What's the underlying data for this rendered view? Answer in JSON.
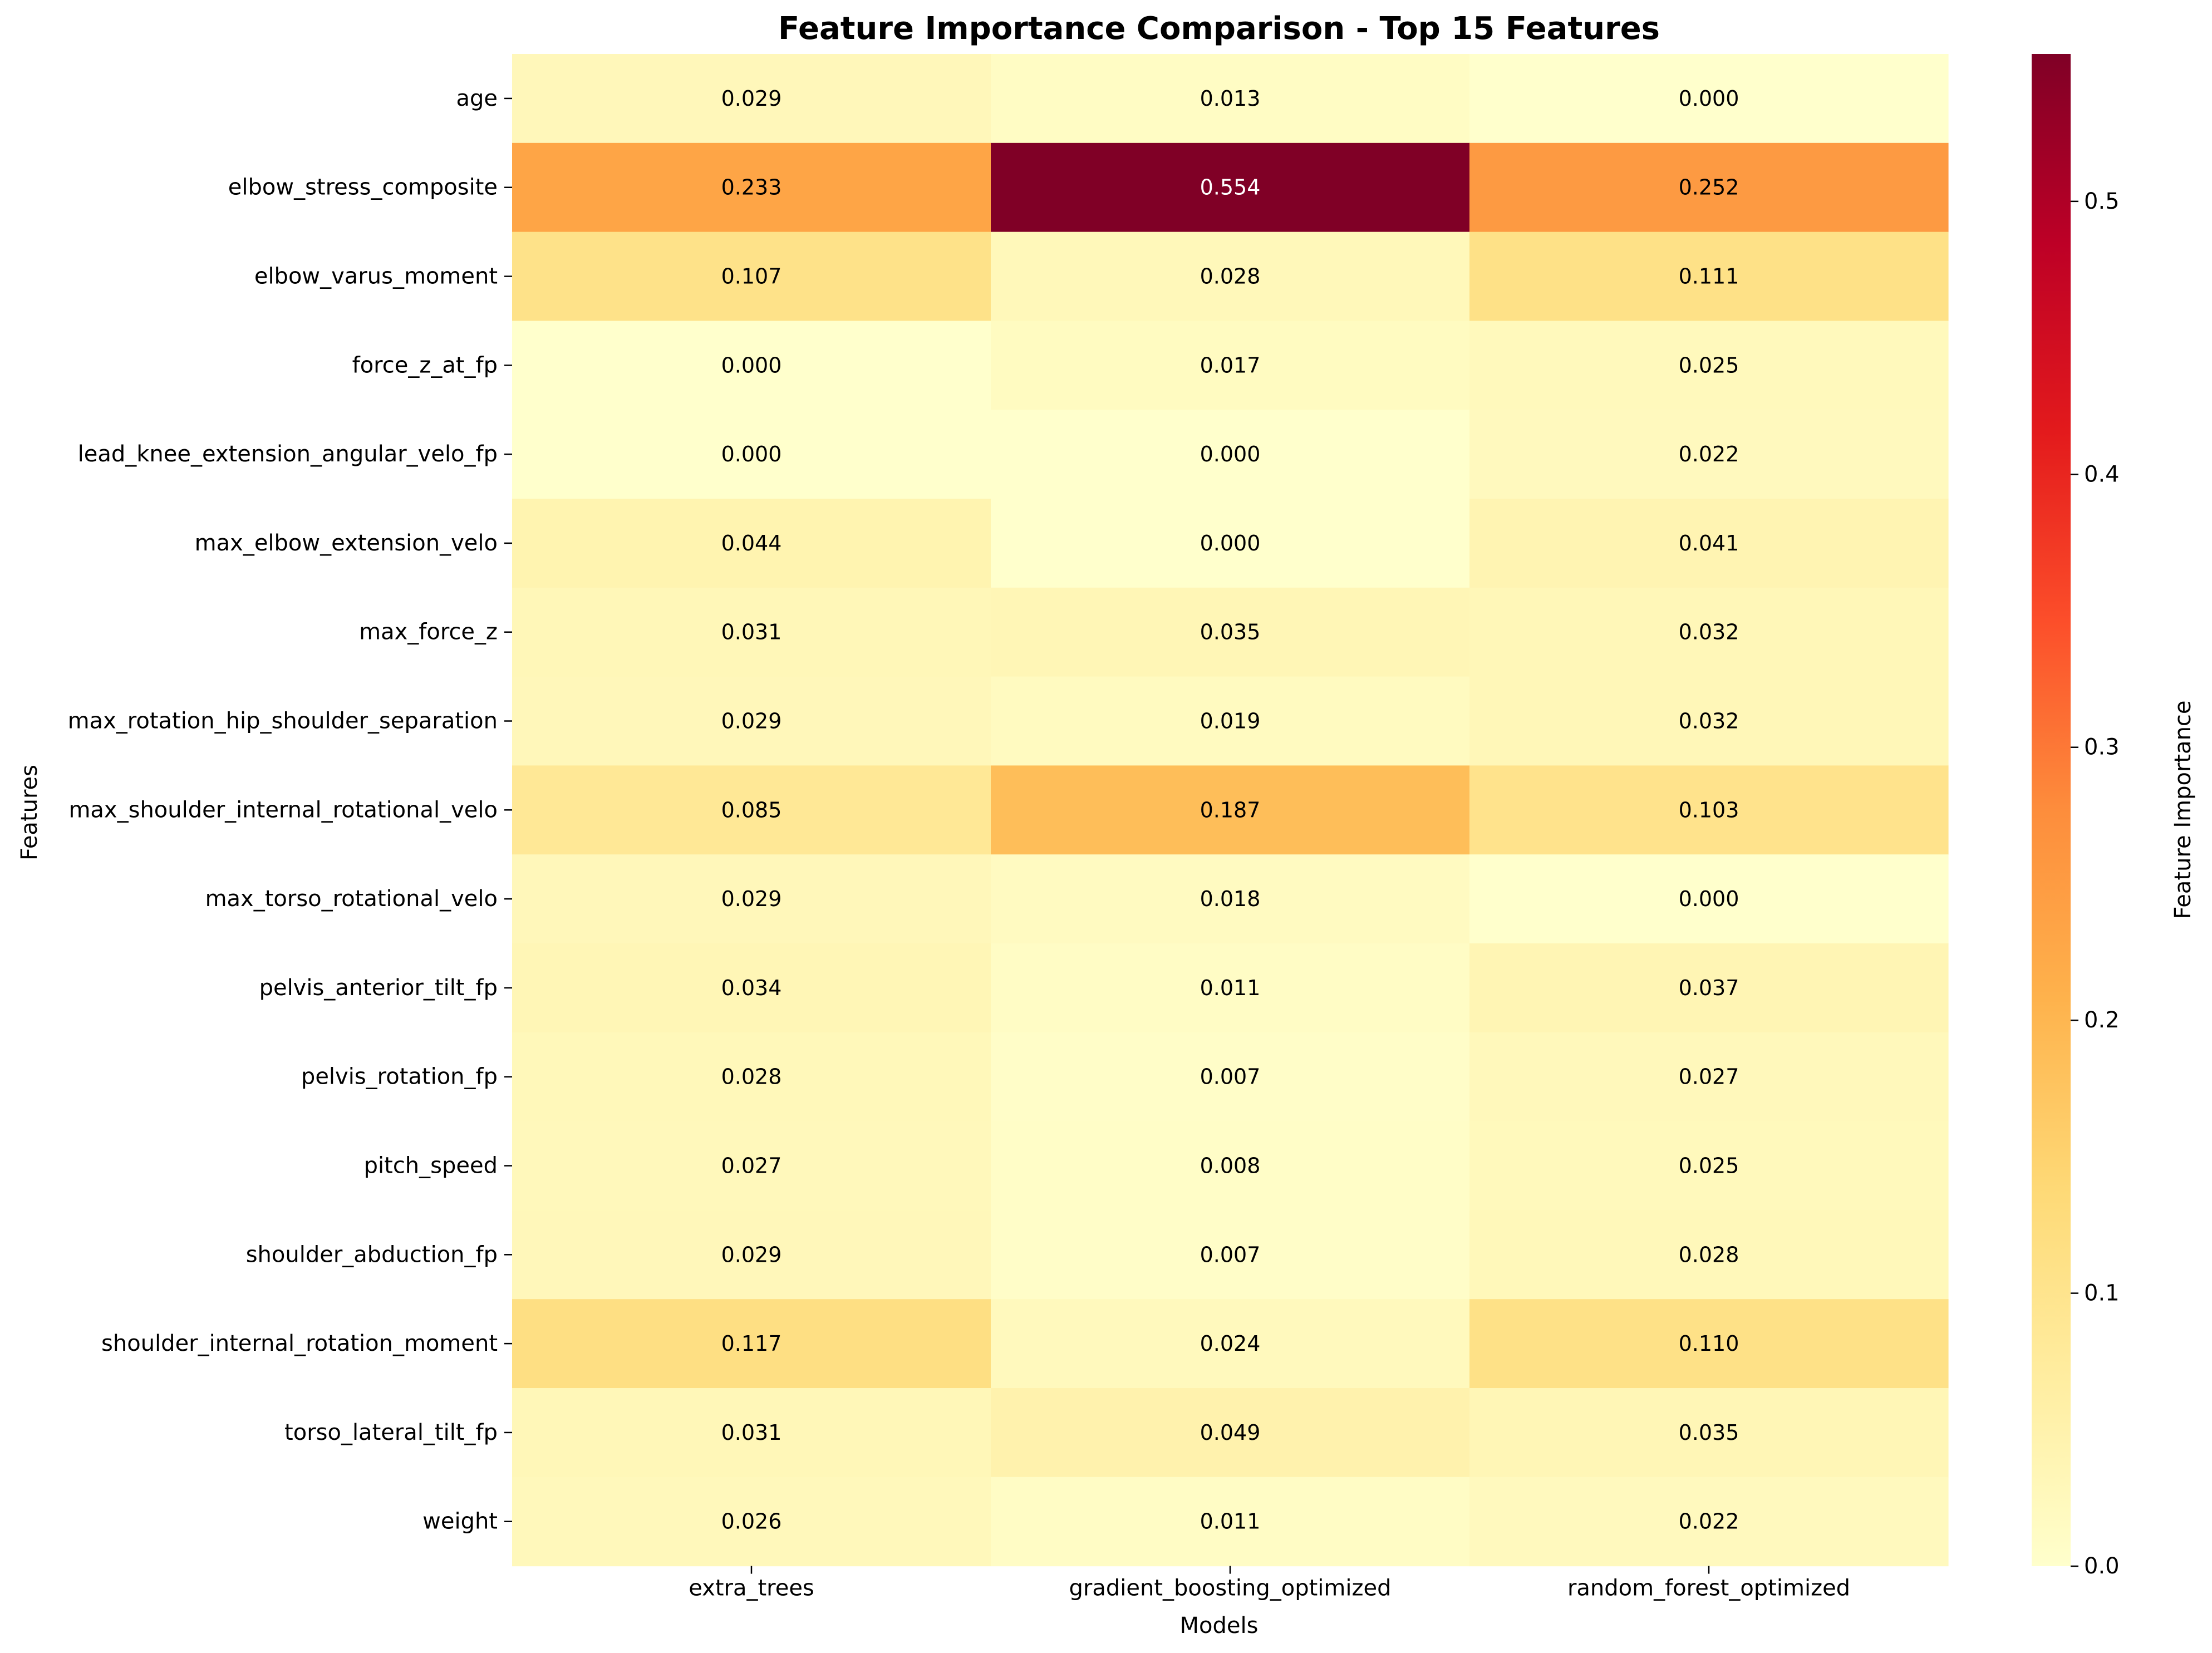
{
  "chart_data": {
    "type": "heatmap",
    "title": "Feature Importance Comparison - Top 15 Features",
    "xlabel": "Models",
    "ylabel": "Features",
    "colorbar_label": "Feature Importance",
    "colormap": "YlOrRd",
    "vmin": 0.0,
    "vmax": 0.554,
    "colorbar_ticks": [
      "0.0",
      "0.1",
      "0.2",
      "0.3",
      "0.4",
      "0.5"
    ],
    "colorbar_tick_values": [
      0.0,
      0.1,
      0.2,
      0.3,
      0.4,
      0.5
    ],
    "columns": [
      "extra_trees",
      "gradient_boosting_optimized",
      "random_forest_optimized"
    ],
    "rows": [
      "age",
      "elbow_stress_composite",
      "elbow_varus_moment",
      "force_z_at_fp",
      "lead_knee_extension_angular_velo_fp",
      "max_elbow_extension_velo",
      "max_force_z",
      "max_rotation_hip_shoulder_separation",
      "max_shoulder_internal_rotational_velo",
      "max_torso_rotational_velo",
      "pelvis_anterior_tilt_fp",
      "pelvis_rotation_fp",
      "pitch_speed",
      "shoulder_abduction_fp",
      "shoulder_internal_rotation_moment",
      "torso_lateral_tilt_fp",
      "weight"
    ],
    "values": [
      [
        0.029,
        0.013,
        0.0
      ],
      [
        0.233,
        0.554,
        0.252
      ],
      [
        0.107,
        0.028,
        0.111
      ],
      [
        0.0,
        0.017,
        0.025
      ],
      [
        0.0,
        0.0,
        0.022
      ],
      [
        0.044,
        0.0,
        0.041
      ],
      [
        0.031,
        0.035,
        0.032
      ],
      [
        0.029,
        0.019,
        0.032
      ],
      [
        0.085,
        0.187,
        0.103
      ],
      [
        0.029,
        0.018,
        0.0
      ],
      [
        0.034,
        0.011,
        0.037
      ],
      [
        0.028,
        0.007,
        0.027
      ],
      [
        0.027,
        0.008,
        0.025
      ],
      [
        0.029,
        0.007,
        0.028
      ],
      [
        0.117,
        0.024,
        0.11
      ],
      [
        0.031,
        0.049,
        0.035
      ],
      [
        0.026,
        0.011,
        0.022
      ]
    ],
    "value_format": "3 decimals",
    "grid": false
  }
}
